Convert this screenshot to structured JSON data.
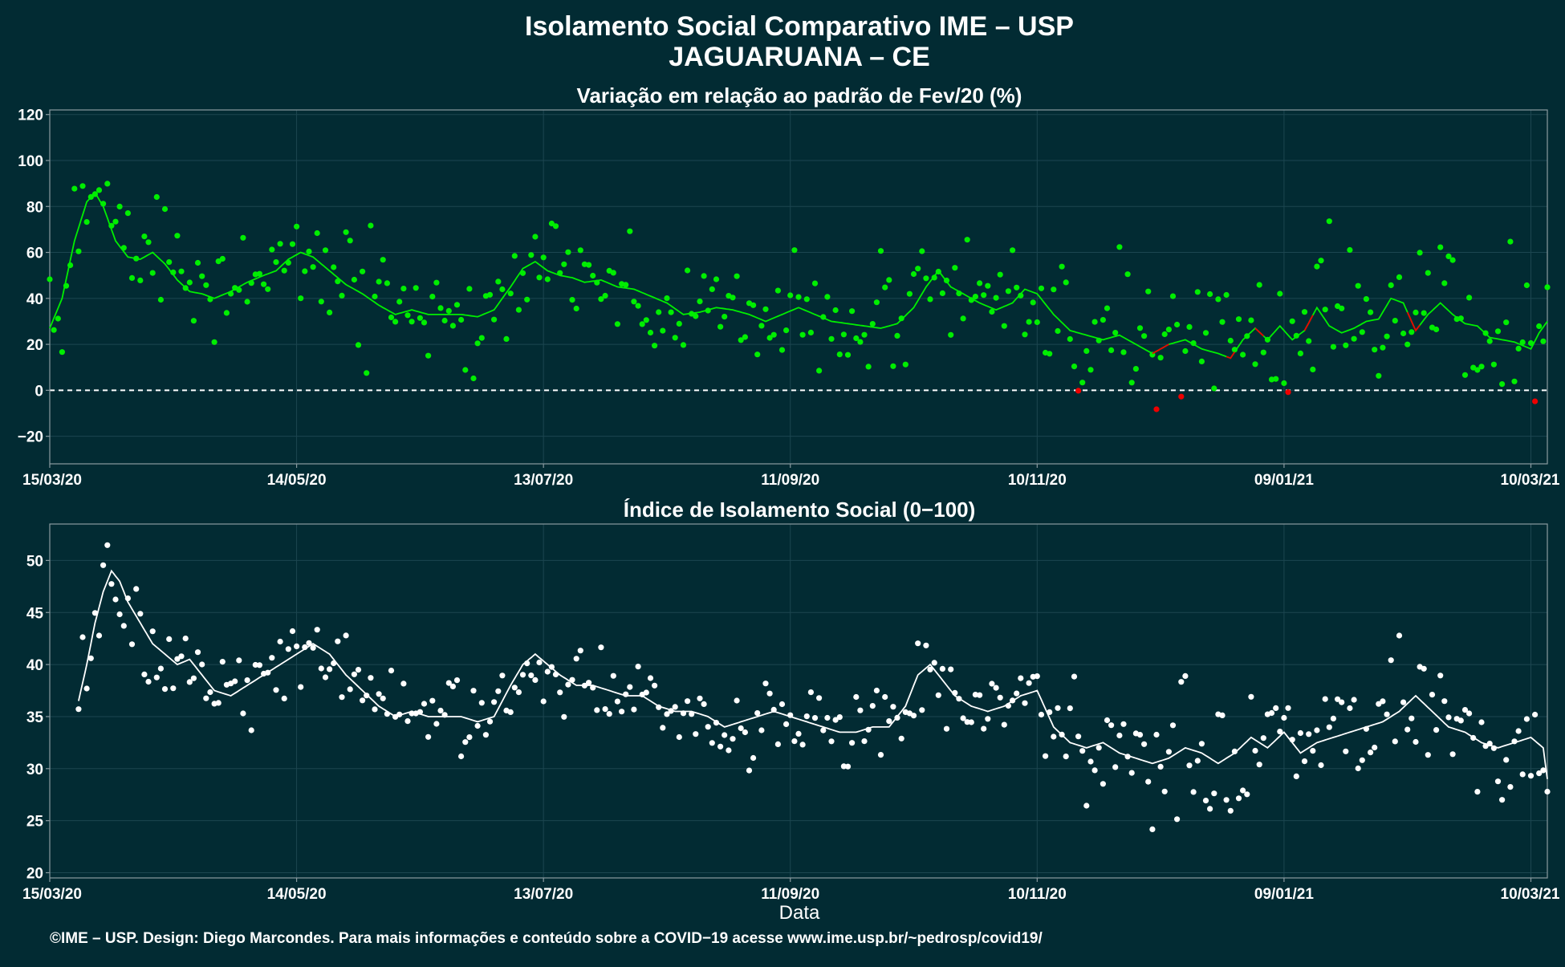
{
  "header": {
    "title": "Isolamento Social Comparativo IME – USP",
    "subtitle": "JAGUARUANA – CE"
  },
  "footer": {
    "caption": "©IME – USP. Design: Diego Marcondes. Para mais informações e conteúdo sobre a COVID−19 acesse www.ime.usp.br/~pedrosp/covid19/"
  },
  "colors": {
    "background": "#022b33",
    "green": "#00ee00",
    "red": "#ee0000",
    "white": "#ffffff",
    "grid": "#1c4650",
    "axis": "#8a9aa0"
  },
  "chart_data": [
    {
      "type": "scatter",
      "title": "Variação em relação ao padrão de Fev/20 (%)",
      "xlabel": "",
      "ylabel": "",
      "ylim": [
        -32,
        122
      ],
      "y_ticks": [
        120,
        100,
        80,
        60,
        40,
        20,
        0,
        -20
      ],
      "y_tick_labels": [
        "120",
        "100",
        "80",
        "60",
        "40",
        "20",
        "0",
        "−20"
      ],
      "x_ticks": [
        "15/03/20",
        "14/05/20",
        "13/07/20",
        "11/09/20",
        "10/11/20",
        "09/01/21",
        "10/03/21"
      ],
      "x_tick_days": [
        0,
        60,
        120,
        180,
        240,
        300,
        360
      ],
      "xlim_days": [
        0,
        364
      ],
      "reference_line": {
        "y": 0,
        "style": "dashed",
        "color": "#ffffff"
      },
      "grid": true,
      "legend": "none",
      "smooth_anchors": [
        [
          0,
          27
        ],
        [
          3,
          40
        ],
        [
          6,
          65
        ],
        [
          9,
          82
        ],
        [
          11,
          86
        ],
        [
          13,
          80
        ],
        [
          16,
          65
        ],
        [
          19,
          58
        ],
        [
          22,
          57
        ],
        [
          25,
          60
        ],
        [
          28,
          55
        ],
        [
          31,
          48
        ],
        [
          34,
          43
        ],
        [
          37,
          42
        ],
        [
          40,
          40
        ],
        [
          44,
          43
        ],
        [
          48,
          47
        ],
        [
          52,
          50
        ],
        [
          55,
          52
        ],
        [
          58,
          57
        ],
        [
          61,
          60
        ],
        [
          64,
          58
        ],
        [
          68,
          52
        ],
        [
          72,
          46
        ],
        [
          76,
          42
        ],
        [
          80,
          37
        ],
        [
          84,
          33
        ],
        [
          88,
          35
        ],
        [
          92,
          33
        ],
        [
          96,
          33
        ],
        [
          100,
          33
        ],
        [
          104,
          32
        ],
        [
          108,
          35
        ],
        [
          112,
          45
        ],
        [
          115,
          53
        ],
        [
          118,
          56
        ],
        [
          121,
          52
        ],
        [
          124,
          50
        ],
        [
          127,
          49
        ],
        [
          130,
          47
        ],
        [
          134,
          48
        ],
        [
          138,
          45
        ],
        [
          142,
          44
        ],
        [
          146,
          41
        ],
        [
          150,
          38
        ],
        [
          154,
          33
        ],
        [
          158,
          34
        ],
        [
          162,
          36
        ],
        [
          166,
          35
        ],
        [
          170,
          33
        ],
        [
          174,
          30
        ],
        [
          178,
          33
        ],
        [
          182,
          36
        ],
        [
          186,
          33
        ],
        [
          190,
          30
        ],
        [
          194,
          29
        ],
        [
          198,
          28
        ],
        [
          202,
          27
        ],
        [
          206,
          29
        ],
        [
          210,
          36
        ],
        [
          213,
          45
        ],
        [
          216,
          52
        ],
        [
          219,
          45
        ],
        [
          222,
          42
        ],
        [
          226,
          38
        ],
        [
          230,
          35
        ],
        [
          234,
          38
        ],
        [
          237,
          44
        ],
        [
          240,
          42
        ],
        [
          244,
          33
        ],
        [
          248,
          26
        ],
        [
          252,
          24
        ],
        [
          256,
          22
        ],
        [
          260,
          24
        ],
        [
          264,
          20
        ],
        [
          268,
          16
        ],
        [
          272,
          20
        ],
        [
          276,
          22
        ],
        [
          280,
          18
        ],
        [
          284,
          16
        ],
        [
          287,
          14
        ],
        [
          290,
          22
        ],
        [
          293,
          27
        ],
        [
          296,
          22
        ],
        [
          299,
          28
        ],
        [
          302,
          22
        ],
        [
          305,
          26
        ],
        [
          308,
          36
        ],
        [
          311,
          28
        ],
        [
          314,
          25
        ],
        [
          317,
          27
        ],
        [
          320,
          30
        ],
        [
          323,
          31
        ],
        [
          326,
          40
        ],
        [
          329,
          38
        ],
        [
          332,
          26
        ],
        [
          335,
          33
        ],
        [
          338,
          38
        ],
        [
          341,
          33
        ],
        [
          344,
          29
        ],
        [
          347,
          28
        ],
        [
          350,
          23
        ],
        [
          353,
          22
        ],
        [
          356,
          21
        ],
        [
          360,
          18
        ],
        [
          362,
          25
        ],
        [
          364,
          30
        ]
      ],
      "red_segments": [
        [
          268,
          272
        ],
        [
          286,
          288
        ],
        [
          293,
          295
        ],
        [
          305,
          307
        ],
        [
          330,
          333
        ]
      ],
      "point_count": 365,
      "low_points_red": true
    },
    {
      "type": "scatter",
      "title": "Índice de Isolamento Social (0−100)",
      "xlabel": "Data",
      "ylabel": "",
      "ylim": [
        19.5,
        53.5
      ],
      "y_ticks": [
        50,
        45,
        40,
        35,
        30,
        25,
        20
      ],
      "y_tick_labels": [
        "50",
        "45",
        "40",
        "35",
        "30",
        "25",
        "20"
      ],
      "x_ticks": [
        "15/03/20",
        "14/05/20",
        "13/07/20",
        "11/09/20",
        "10/11/20",
        "09/01/21",
        "10/03/21"
      ],
      "x_tick_days": [
        0,
        60,
        120,
        180,
        240,
        300,
        360
      ],
      "xlim_days": [
        0,
        364
      ],
      "grid": true,
      "legend": "none",
      "smooth_anchors": [
        [
          7,
          36.5
        ],
        [
          9,
          40
        ],
        [
          11,
          44
        ],
        [
          13,
          47
        ],
        [
          15,
          49
        ],
        [
          17,
          48
        ],
        [
          19,
          46
        ],
        [
          22,
          44
        ],
        [
          25,
          42
        ],
        [
          28,
          41
        ],
        [
          31,
          40
        ],
        [
          34,
          40.5
        ],
        [
          37,
          39
        ],
        [
          40,
          37.5
        ],
        [
          44,
          37
        ],
        [
          48,
          38
        ],
        [
          52,
          39
        ],
        [
          56,
          40
        ],
        [
          60,
          41
        ],
        [
          64,
          42
        ],
        [
          68,
          41
        ],
        [
          72,
          39
        ],
        [
          76,
          37.5
        ],
        [
          80,
          36
        ],
        [
          84,
          35
        ],
        [
          88,
          35.5
        ],
        [
          92,
          35
        ],
        [
          96,
          35
        ],
        [
          100,
          35
        ],
        [
          104,
          34.5
        ],
        [
          108,
          35
        ],
        [
          112,
          38
        ],
        [
          115,
          40
        ],
        [
          118,
          41
        ],
        [
          121,
          40
        ],
        [
          124,
          39
        ],
        [
          128,
          38
        ],
        [
          132,
          38
        ],
        [
          136,
          37.5
        ],
        [
          140,
          37
        ],
        [
          144,
          37
        ],
        [
          148,
          36
        ],
        [
          152,
          35.5
        ],
        [
          156,
          35.5
        ],
        [
          160,
          35
        ],
        [
          164,
          34
        ],
        [
          168,
          34.5
        ],
        [
          172,
          35
        ],
        [
          176,
          35.5
        ],
        [
          180,
          35
        ],
        [
          184,
          34.5
        ],
        [
          188,
          34
        ],
        [
          192,
          33.5
        ],
        [
          196,
          33.5
        ],
        [
          200,
          34
        ],
        [
          204,
          34
        ],
        [
          208,
          36
        ],
        [
          211,
          39
        ],
        [
          214,
          40
        ],
        [
          217,
          38.5
        ],
        [
          220,
          37
        ],
        [
          224,
          36
        ],
        [
          228,
          35.5
        ],
        [
          232,
          36
        ],
        [
          236,
          37
        ],
        [
          240,
          37.5
        ],
        [
          244,
          34
        ],
        [
          248,
          32.5
        ],
        [
          252,
          32
        ],
        [
          256,
          32.5
        ],
        [
          260,
          31.5
        ],
        [
          264,
          31
        ],
        [
          268,
          30.5
        ],
        [
          272,
          31
        ],
        [
          276,
          32
        ],
        [
          280,
          31.5
        ],
        [
          284,
          30.5
        ],
        [
          288,
          31.5
        ],
        [
          292,
          33
        ],
        [
          296,
          32
        ],
        [
          300,
          33.5
        ],
        [
          304,
          31.5
        ],
        [
          308,
          32.5
        ],
        [
          312,
          33
        ],
        [
          316,
          33.5
        ],
        [
          320,
          34
        ],
        [
          324,
          34.5
        ],
        [
          328,
          35.5
        ],
        [
          332,
          37
        ],
        [
          336,
          35.5
        ],
        [
          340,
          34
        ],
        [
          344,
          33.5
        ],
        [
          348,
          32.5
        ],
        [
          352,
          32
        ],
        [
          356,
          32.5
        ],
        [
          360,
          33
        ],
        [
          363,
          32
        ],
        [
          364,
          29
        ]
      ],
      "point_count": 358
    }
  ]
}
